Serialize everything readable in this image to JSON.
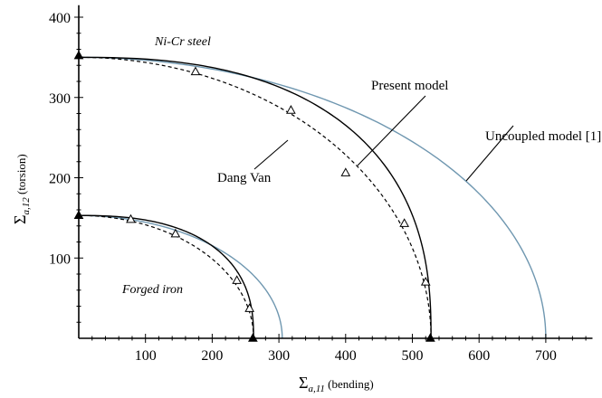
{
  "chart_data": {
    "type": "line",
    "xlabel": {
      "symbol": "Σ",
      "sub": "a,11",
      "text": " (bending)"
    },
    "ylabel": {
      "symbol": "Σ",
      "sub": "a,12",
      "text": " (torsion)"
    },
    "xlim": [
      0,
      770
    ],
    "ylim": [
      0,
      415
    ],
    "x_ticks": [
      100,
      200,
      300,
      400,
      500,
      600,
      700
    ],
    "y_ticks": [
      100,
      200,
      300,
      400
    ],
    "grid": false,
    "colors": {
      "uncoupled": "#6f97b0",
      "curves": "#000000"
    },
    "series": [
      {
        "name": "Uncoupled model [1]",
        "group": "Ni-Cr steel",
        "style": "solid-blue",
        "shape": "ellipse",
        "a": 700,
        "b": 350
      },
      {
        "name": "Present model",
        "group": "Ni-Cr steel",
        "style": "solid-black",
        "shape": "ellipse-bulged",
        "a": 528,
        "b": 350,
        "e": 1.25
      },
      {
        "name": "Dang Van",
        "group": "Ni-Cr steel",
        "style": "dashed-black",
        "shape": "ellipse",
        "a": 528,
        "b": 350
      },
      {
        "name": "",
        "group": "Forged iron",
        "style": "solid-blue",
        "shape": "ellipse",
        "a": 305,
        "b": 153
      },
      {
        "name": "",
        "group": "Forged iron",
        "style": "solid-black",
        "shape": "ellipse-bulged",
        "a": 262,
        "b": 153,
        "e": 1.25
      },
      {
        "name": "",
        "group": "Forged iron",
        "style": "dashed-black",
        "shape": "ellipse",
        "a": 262,
        "b": 153
      }
    ],
    "experimental_points": [
      {
        "x": 175,
        "y": 332
      },
      {
        "x": 318,
        "y": 284
      },
      {
        "x": 400,
        "y": 206
      },
      {
        "x": 488,
        "y": 143
      },
      {
        "x": 520,
        "y": 70
      },
      {
        "x": 78,
        "y": 148
      },
      {
        "x": 145,
        "y": 130
      },
      {
        "x": 237,
        "y": 72
      },
      {
        "x": 256,
        "y": 37
      }
    ],
    "axis_points": [
      {
        "x": 0,
        "y": 352
      },
      {
        "x": 527,
        "y": 0
      },
      {
        "x": 0,
        "y": 153
      },
      {
        "x": 261,
        "y": 0
      }
    ],
    "annotations": {
      "nicr": "Ni-Cr steel",
      "forged": "Forged iron",
      "present": "Present model",
      "dangvan": "Dang Van",
      "uncoupled": "Uncoupled model [1]"
    }
  }
}
